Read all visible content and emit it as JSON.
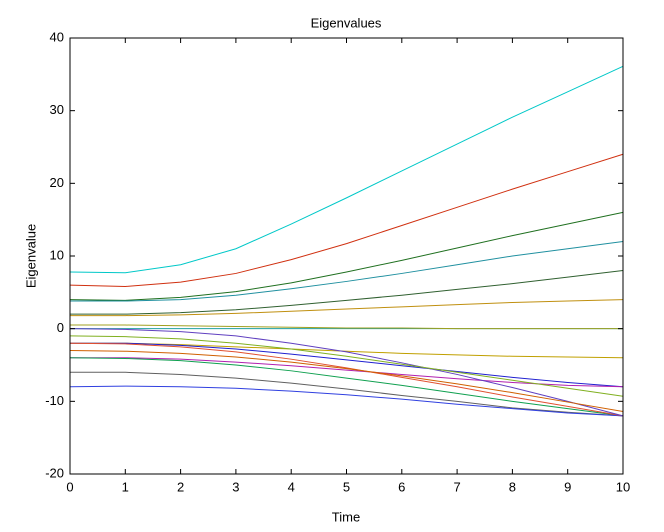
{
  "chart_data": {
    "type": "line",
    "title": "Eigenvalues",
    "x_label": "Time",
    "y_label": "Eigenvalue",
    "x": [
      0,
      1,
      2,
      3,
      4,
      5,
      6,
      7,
      8,
      9,
      10
    ],
    "series": [
      {
        "color": "#00c8c8",
        "values": [
          7.8,
          7.7,
          8.8,
          11.0,
          14.4,
          18.0,
          21.7,
          25.4,
          29.1,
          32.6,
          36.1
        ]
      },
      {
        "color": "#d03010",
        "values": [
          6,
          5.8,
          6.4,
          7.6,
          9.5,
          11.7,
          14.2,
          16.7,
          19.2,
          21.6,
          24
        ]
      },
      {
        "color": "#207020",
        "values": [
          4,
          3.9,
          4.3,
          5.1,
          6.3,
          7.8,
          9.4,
          11.1,
          12.8,
          14.4,
          16
        ]
      },
      {
        "color": "#2090a0",
        "values": [
          3.8,
          3.8,
          4.0,
          4.6,
          5.5,
          6.5,
          7.6,
          8.8,
          10,
          11,
          12
        ]
      },
      {
        "color": "#306030",
        "values": [
          2,
          2,
          2.2,
          2.6,
          3.2,
          3.9,
          4.6,
          5.4,
          6.2,
          7.1,
          8
        ]
      },
      {
        "color": "#c09010",
        "values": [
          1.8,
          1.8,
          1.9,
          2.1,
          2.4,
          2.7,
          3,
          3.3,
          3.6,
          3.8,
          4
        ]
      },
      {
        "color": "#20a0a0",
        "values": [
          0,
          0,
          0,
          0,
          0,
          0,
          0,
          0,
          0,
          0,
          0
        ]
      },
      {
        "color": "#a0a020",
        "values": [
          0.5,
          0.5,
          0.4,
          0.3,
          0.2,
          0.1,
          0.1,
          0,
          0,
          0,
          0
        ]
      },
      {
        "color": "#c0a000",
        "values": [
          -2,
          -2,
          -2.2,
          -2.5,
          -2.8,
          -3.1,
          -3.4,
          -3.6,
          -3.8,
          -3.9,
          -4
        ]
      },
      {
        "color": "#2020d0",
        "values": [
          -2,
          -2,
          -2.3,
          -2.8,
          -3.5,
          -4.3,
          -5.1,
          -5.9,
          -6.7,
          -7.4,
          -8
        ]
      },
      {
        "color": "#b020b0",
        "values": [
          -4,
          -4,
          -4.2,
          -4.6,
          -5.1,
          -5.7,
          -6.3,
          -6.9,
          -7.4,
          -7.8,
          -8
        ]
      },
      {
        "color": "#10a050",
        "values": [
          -4,
          -4.1,
          -4.4,
          -5,
          -5.8,
          -6.8,
          -7.8,
          -8.9,
          -10,
          -11,
          -12
        ]
      },
      {
        "color": "#606060",
        "values": [
          -6,
          -6,
          -6.3,
          -6.8,
          -7.5,
          -8.3,
          -9.2,
          -10,
          -10.9,
          -11.5,
          -12
        ]
      },
      {
        "color": "#3040e0",
        "values": [
          -8,
          -7.9,
          -8,
          -8.2,
          -8.6,
          -9.1,
          -9.7,
          -10.4,
          -11,
          -11.6,
          -12
        ]
      },
      {
        "color": "#e05030",
        "values": [
          -2,
          -2.1,
          -2.5,
          -3.2,
          -4.2,
          -5.4,
          -6.7,
          -8,
          -9.4,
          -10.7,
          -12
        ]
      },
      {
        "color": "#6040c0",
        "values": [
          0,
          -0.1,
          -0.4,
          -1,
          -2,
          -3.2,
          -4.7,
          -6.3,
          -8.1,
          -10,
          -12
        ]
      },
      {
        "color": "#80b020",
        "values": [
          -1,
          -1.1,
          -1.4,
          -2,
          -2.8,
          -3.8,
          -4.9,
          -6,
          -7.1,
          -8.2,
          -9.3
        ]
      },
      {
        "color": "#d06000",
        "values": [
          -3,
          -3.1,
          -3.4,
          -3.9,
          -4.6,
          -5.5,
          -6.5,
          -7.6,
          -8.8,
          -10.1,
          -11.4
        ]
      }
    ],
    "xlim": [
      0,
      10
    ],
    "xticks": [
      0,
      1,
      2,
      3,
      4,
      5,
      6,
      7,
      8,
      9,
      10
    ],
    "ylim": [
      -20,
      40
    ],
    "yticks": [
      -20,
      -10,
      0,
      10,
      20,
      30,
      40
    ],
    "grid": false
  }
}
